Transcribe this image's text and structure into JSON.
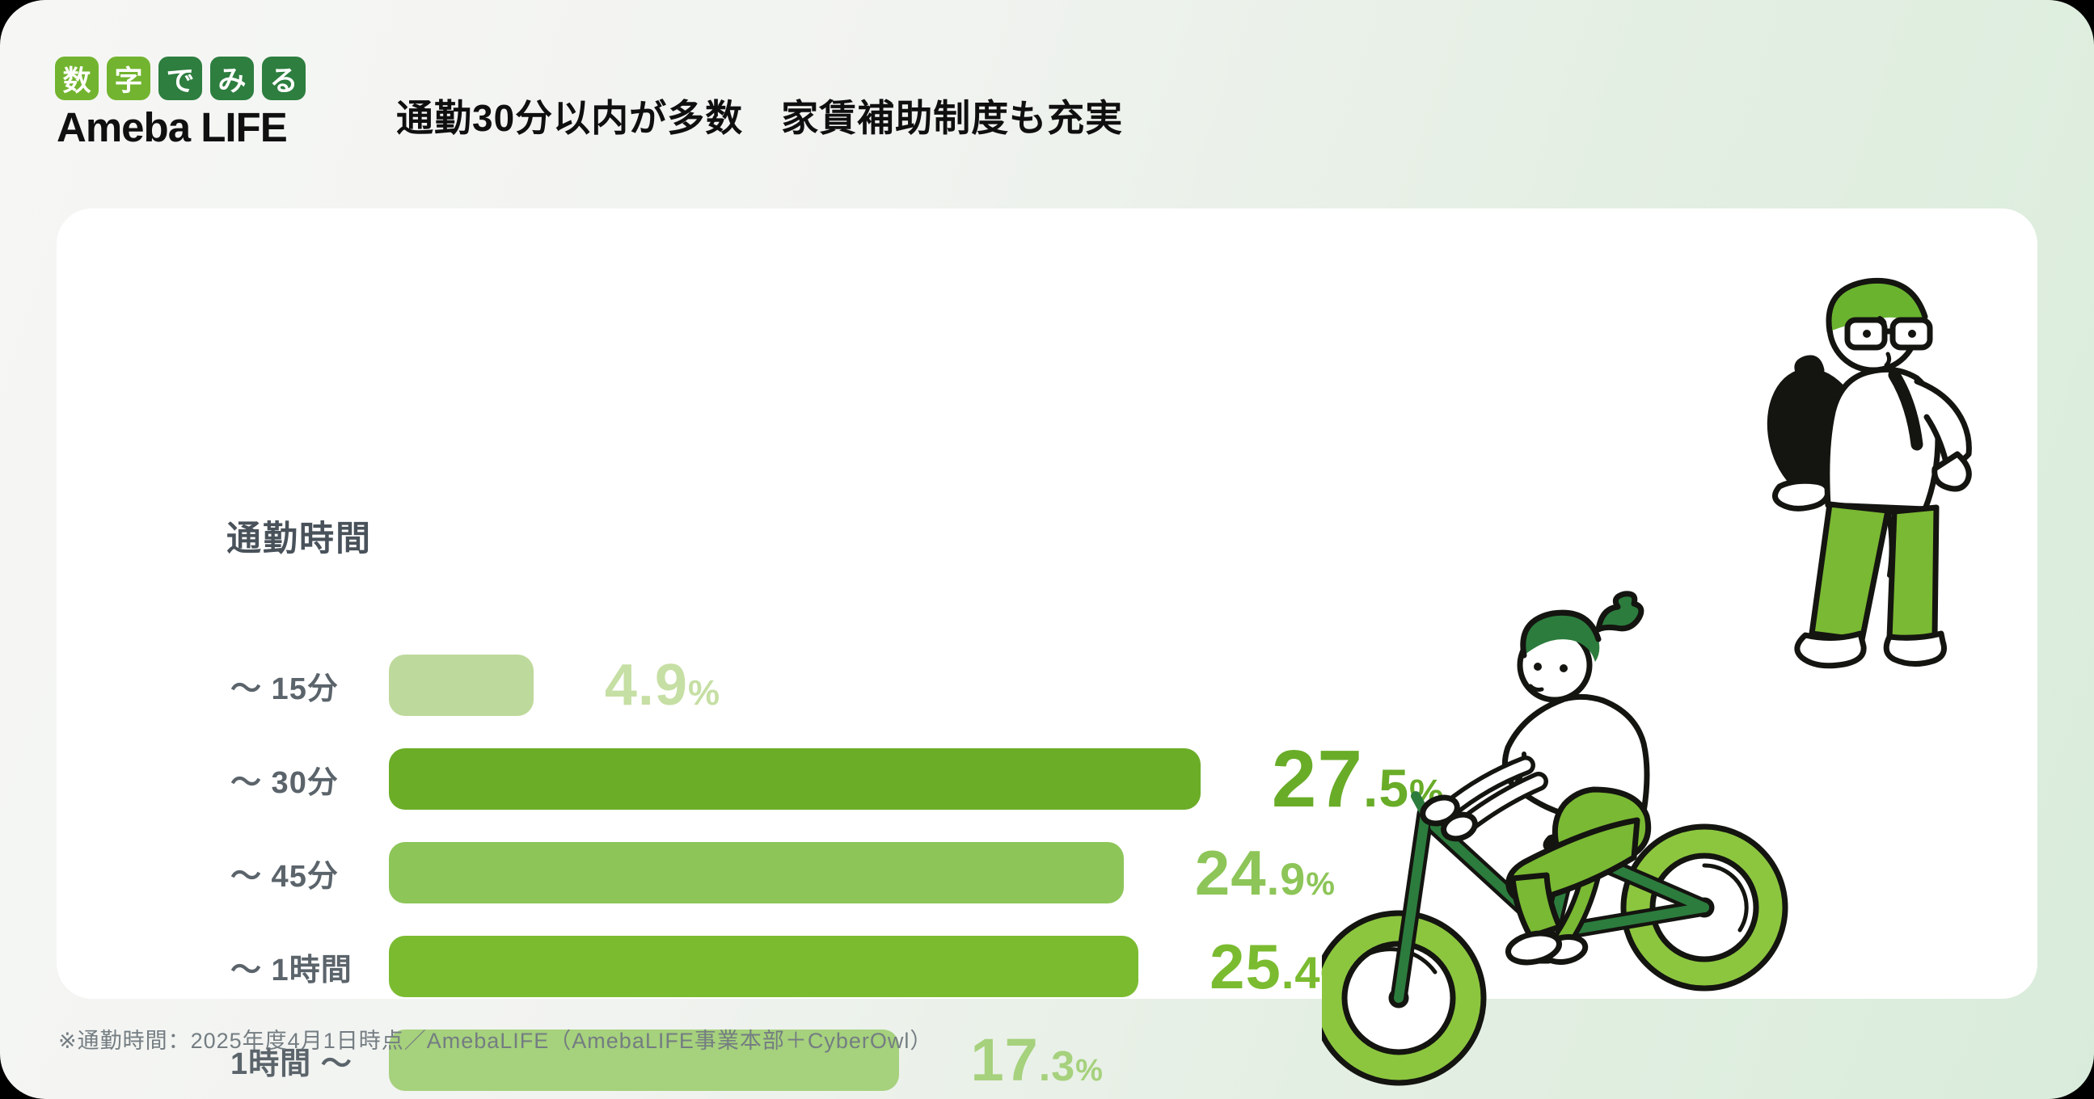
{
  "header": {
    "badge": {
      "chars": [
        "数",
        "字",
        "で",
        "み",
        "る"
      ],
      "light_color": "#72b42f",
      "dark_color": "#2d7e3f"
    },
    "logo": "Ameba LIFE",
    "heading": "通勤30分以内が多数　家賃補助制度も充実"
  },
  "chart_data": {
    "type": "bar",
    "orientation": "horizontal",
    "title": "通勤時間",
    "categories": [
      "～ 15分",
      "～ 30分",
      "～ 45分",
      "～ 1時間",
      "1時間 ～"
    ],
    "values": [
      4.9,
      27.5,
      24.9,
      25.4,
      17.3
    ],
    "unit": "%",
    "value_labels": [
      "4.9%",
      "27.5%",
      "24.9%",
      "25.4%",
      "17.3%"
    ],
    "bar_colors": [
      "#bed99c",
      "#6bad27",
      "#8dc558",
      "#7bbb30",
      "#a6d17d"
    ],
    "value_colors": [
      "#c6dfa4",
      "#69ac28",
      "#8dc558",
      "#7bbb30",
      "#a6d17d"
    ],
    "xlim": [
      0,
      30
    ],
    "grid": false,
    "axis_visible": false,
    "legend": "none"
  },
  "illustrations": [
    {
      "name": "walking-student",
      "description": "green-haired person with glasses and black backpack walking"
    },
    {
      "name": "bicycle-commuter",
      "description": "green-haired person riding a green bicycle"
    }
  ],
  "colors": {
    "accent_green": "#6bad27",
    "dark_green": "#2d7e3f",
    "card_background": "#ffffff"
  },
  "footnote": "※通勤時間：2025年度4月1日時点／AmebaLIFE（AmebaLIFE事業本部＋CyberOwl）"
}
